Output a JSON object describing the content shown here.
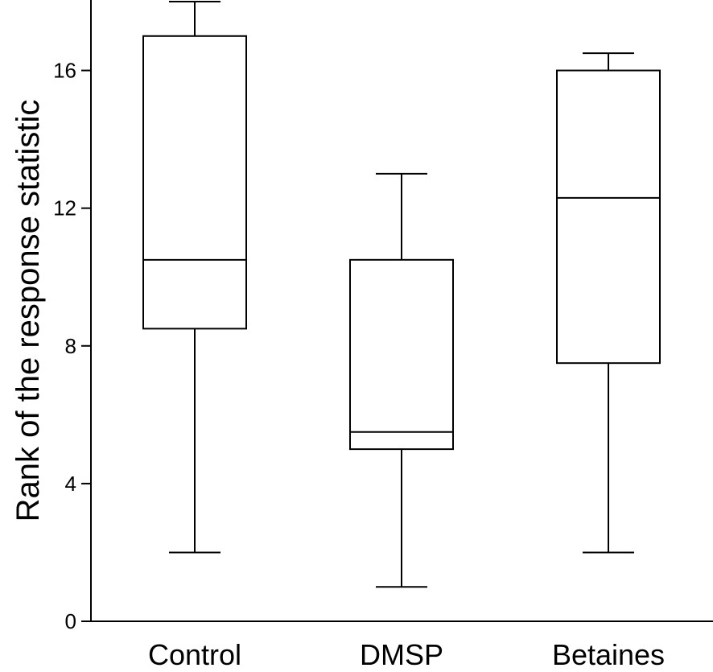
{
  "chart_data": {
    "type": "box",
    "ylabel": "Rank of the response statistic",
    "xlabel": "",
    "ylim": [
      0,
      18
    ],
    "yticks": [
      0,
      4,
      8,
      12,
      16
    ],
    "yticklabels": [
      "0",
      "4",
      "8",
      "12",
      "16"
    ],
    "grid": false,
    "categories": [
      "Control",
      "DMSP",
      "Betaines"
    ],
    "boxes": [
      {
        "category": "Control",
        "min": 2,
        "q1": 8.5,
        "median": 10.5,
        "q3": 17,
        "max": 18
      },
      {
        "category": "DMSP",
        "min": 1,
        "q1": 5,
        "median": 5.5,
        "q3": 10.5,
        "max": 13
      },
      {
        "category": "Betaines",
        "min": 2,
        "q1": 7.5,
        "median": 12.3,
        "q3": 16,
        "max": 16.5
      }
    ]
  }
}
